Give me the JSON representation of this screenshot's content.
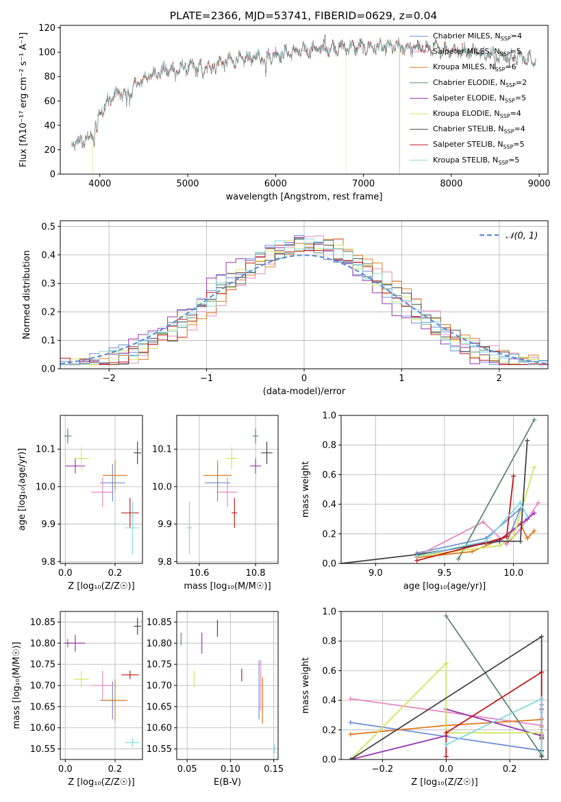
{
  "figure_title": "PLATE=2366, MJD=53741, FIBERID=0629, z=0.04",
  "series_styles": [
    {
      "name": "Chabrier MILES",
      "color": "#6a8fd6"
    },
    {
      "name": "Salpeter MILES",
      "color": "#e589c4"
    },
    {
      "name": "Kroupa MILES",
      "color": "#e07a20"
    },
    {
      "name": "Chabrier ELODIE",
      "color": "#5a8a6a"
    },
    {
      "name": "Salpeter ELODIE",
      "color": "#9933b3"
    },
    {
      "name": "Kroupa ELODIE",
      "color": "#cfe55a"
    },
    {
      "name": "Chabrier STELIB",
      "color": "#444444"
    },
    {
      "name": "Salpeter STELIB",
      "color": "#c41818"
    },
    {
      "name": "Kroupa STELIB",
      "color": "#80d8e0"
    }
  ],
  "chart_data": [
    {
      "id": "spectrum",
      "type": "line",
      "xlabel": "wavelength [Angstrom, rest frame]",
      "ylabel": "Flux [fλ10⁻¹⁷ erg cm⁻² s⁻¹ A⁻¹]",
      "xlim": [
        3550,
        9100
      ],
      "ylim": [
        0,
        122
      ],
      "xticks": [
        4000,
        5000,
        6000,
        7000,
        8000,
        9000
      ],
      "yticks": [
        0,
        20,
        40,
        60,
        80,
        100,
        120
      ],
      "legend_location": "right",
      "legend": [
        {
          "label": "Chabrier MILES, N",
          "sub": "SSP",
          "tail": "=4"
        },
        {
          "label": "Salpeter MILES, N",
          "sub": "SSP",
          "tail": "=5"
        },
        {
          "label": "Kroupa MILES, N",
          "sub": "SSP",
          "tail": "=6"
        },
        {
          "label": "Chabrier ELODIE, N",
          "sub": "SSP",
          "tail": "=2"
        },
        {
          "label": "Salpeter ELODIE, N",
          "sub": "SSP",
          "tail": "=5"
        },
        {
          "label": "Kroupa ELODIE, N",
          "sub": "SSP",
          "tail": "=4"
        },
        {
          "label": "Chabrier STELIB, N",
          "sub": "SSP",
          "tail": "=4"
        },
        {
          "label": "Salpeter STELIB, N",
          "sub": "SSP",
          "tail": "=5"
        },
        {
          "label": "Kroupa STELIB, N",
          "sub": "SSP",
          "tail": "=5"
        }
      ],
      "continuum": [
        [
          3680,
          24
        ],
        [
          3800,
          27
        ],
        [
          3900,
          30
        ],
        [
          3950,
          40
        ],
        [
          4000,
          50
        ],
        [
          4100,
          62
        ],
        [
          4200,
          66
        ],
        [
          4300,
          66
        ],
        [
          4400,
          72
        ],
        [
          4500,
          78
        ],
        [
          4600,
          82
        ],
        [
          4700,
          84
        ],
        [
          4800,
          86
        ],
        [
          4900,
          86
        ],
        [
          5000,
          88
        ],
        [
          5100,
          87
        ],
        [
          5200,
          88
        ],
        [
          5300,
          90
        ],
        [
          5500,
          93
        ],
        [
          5700,
          95
        ],
        [
          5900,
          97
        ],
        [
          6100,
          99
        ],
        [
          6300,
          101
        ],
        [
          6500,
          103
        ],
        [
          6700,
          104
        ],
        [
          7000,
          104
        ],
        [
          7400,
          104
        ],
        [
          7800,
          103
        ],
        [
          8200,
          101
        ],
        [
          8600,
          97
        ],
        [
          8950,
          94
        ]
      ],
      "truncations": [
        {
          "series": "Kroupa ELODIE",
          "at": 3920
        },
        {
          "series": "Kroupa ELODIE",
          "at": 6800
        },
        {
          "series": "Kroupa MILES",
          "at": 7410
        }
      ]
    },
    {
      "id": "residual-histogram",
      "type": "histogram",
      "xlabel": "(data-model)/error",
      "ylabel": "Normed distribution",
      "xlim": [
        -2.5,
        2.5
      ],
      "ylim": [
        0,
        0.52
      ],
      "xticks": [
        -2,
        -1,
        0,
        1,
        2
      ],
      "yticks": [
        0.0,
        0.1,
        0.2,
        0.3,
        0.4,
        0.5
      ],
      "reference_curve": {
        "label": "𝒩(0, 1)",
        "mean": 0,
        "sigma": 1,
        "color": "#5b8dd9",
        "style": "dashed"
      },
      "bin_width": 0.1,
      "legend_location": "top-right"
    },
    {
      "id": "age-vs-Z",
      "type": "errorbar",
      "xlabel": "Z [log₁₀(Z/Z☉)]",
      "ylabel": "age  [log₁₀(age/yr)]",
      "xlim": [
        -0.02,
        0.31
      ],
      "ylim": [
        9.795,
        10.19
      ],
      "xticks": [
        0.0,
        0.2
      ],
      "yticks": [
        9.8,
        9.9,
        10.0,
        10.1
      ],
      "points": [
        {
          "series": "Chabrier MILES",
          "x": 0.19,
          "y": 10.01,
          "xerr": 0.05,
          "yerr": 0.05
        },
        {
          "series": "Salpeter MILES",
          "x": 0.15,
          "y": 9.985,
          "xerr": 0.045,
          "yerr": 0.04
        },
        {
          "series": "Kroupa MILES",
          "x": 0.2,
          "y": 10.03,
          "xerr": 0.05,
          "yerr": 0.04
        },
        {
          "series": "Chabrier ELODIE",
          "x": 0.01,
          "y": 10.135,
          "xerr": 0.015,
          "yerr": 0.02
        },
        {
          "series": "Salpeter ELODIE",
          "x": 0.04,
          "y": 10.055,
          "xerr": 0.04,
          "yerr": 0.02
        },
        {
          "series": "Kroupa ELODIE",
          "x": 0.065,
          "y": 10.075,
          "xerr": 0.03,
          "yerr": 0.03
        },
        {
          "series": "Chabrier STELIB",
          "x": 0.29,
          "y": 10.09,
          "xerr": 0.015,
          "yerr": 0.03
        },
        {
          "series": "Salpeter STELIB",
          "x": 0.26,
          "y": 9.93,
          "xerr": 0.035,
          "yerr": 0.04
        },
        {
          "series": "Kroupa STELIB",
          "x": 0.27,
          "y": 9.89,
          "xerr": 0.03,
          "yerr": 0.07
        }
      ]
    },
    {
      "id": "age-vs-mass",
      "type": "errorbar",
      "xlabel": "mass [log₁₀(M/M☉)]",
      "ylabel": "",
      "xlim": [
        10.52,
        10.88
      ],
      "ylim": [
        9.795,
        10.19
      ],
      "xticks": [
        10.6,
        10.8
      ],
      "yticks": [
        9.8,
        9.9,
        10.0,
        10.1
      ],
      "points": [
        {
          "series": "Chabrier MILES",
          "x": 10.665,
          "y": 10.01,
          "xerr": 0.045,
          "yerr": 0.05
        },
        {
          "series": "Salpeter MILES",
          "x": 10.7,
          "y": 9.985,
          "xerr": 0.035,
          "yerr": 0.04
        },
        {
          "series": "Kroupa MILES",
          "x": 10.665,
          "y": 10.03,
          "xerr": 0.05,
          "yerr": 0.04
        },
        {
          "series": "Chabrier ELODIE",
          "x": 10.8,
          "y": 10.135,
          "xerr": 0.01,
          "yerr": 0.02
        },
        {
          "series": "Salpeter ELODIE",
          "x": 10.8,
          "y": 10.055,
          "xerr": 0.02,
          "yerr": 0.02
        },
        {
          "series": "Kroupa ELODIE",
          "x": 10.715,
          "y": 10.075,
          "xerr": 0.02,
          "yerr": 0.03
        },
        {
          "series": "Chabrier STELIB",
          "x": 10.84,
          "y": 10.09,
          "xerr": 0.02,
          "yerr": 0.03
        },
        {
          "series": "Salpeter STELIB",
          "x": 10.725,
          "y": 9.93,
          "xerr": 0.01,
          "yerr": 0.04
        },
        {
          "series": "Kroupa STELIB",
          "x": 10.565,
          "y": 9.89,
          "xerr": 0.01,
          "yerr": 0.07
        }
      ]
    },
    {
      "id": "mass-weight-vs-age",
      "type": "line",
      "xlabel": "age  [log₁₀(age/yr)]",
      "ylabel": "mass weight",
      "xlim": [
        8.75,
        10.25
      ],
      "ylim": [
        0,
        1.0
      ],
      "xticks": [
        9.0,
        9.5,
        10.0
      ],
      "yticks": [
        0.0,
        0.2,
        0.4,
        0.6,
        0.8,
        1.0
      ],
      "series": [
        {
          "name": "Chabrier MILES",
          "points": [
            [
              9.3,
              0.07
            ],
            [
              9.8,
              0.17
            ],
            [
              10.05,
              0.37
            ],
            [
              9.95,
              0.14
            ]
          ]
        },
        {
          "name": "Salpeter MILES",
          "points": [
            [
              9.3,
              0.05
            ],
            [
              9.78,
              0.28
            ],
            [
              9.95,
              0.13
            ],
            [
              10.05,
              0.23
            ],
            [
              10.18,
              0.41
            ]
          ]
        },
        {
          "name": "Kroupa MILES",
          "points": [
            [
              9.3,
              0.04
            ],
            [
              9.7,
              0.08
            ],
            [
              9.95,
              0.18
            ],
            [
              10.05,
              0.27
            ],
            [
              10.1,
              0.17
            ],
            [
              10.15,
              0.22
            ]
          ]
        },
        {
          "name": "Chabrier ELODIE",
          "points": [
            [
              9.6,
              0.03
            ],
            [
              10.15,
              0.97
            ]
          ]
        },
        {
          "name": "Salpeter ELODIE",
          "points": [
            [
              9.3,
              0.05
            ],
            [
              9.9,
              0.16
            ],
            [
              10.1,
              0.3
            ],
            [
              10.15,
              0.34
            ]
          ]
        },
        {
          "name": "Kroupa ELODIE",
          "points": [
            [
              9.3,
              0.05
            ],
            [
              9.9,
              0.12
            ],
            [
              10.0,
              0.18
            ],
            [
              10.15,
              0.65
            ]
          ]
        },
        {
          "name": "Chabrier STELIB",
          "points": [
            [
              8.75,
              0.0
            ],
            [
              9.3,
              0.06
            ],
            [
              9.9,
              0.15
            ],
            [
              10.05,
              0.15
            ],
            [
              10.1,
              0.83
            ]
          ]
        },
        {
          "name": "Salpeter STELIB",
          "points": [
            [
              9.3,
              0.02
            ],
            [
              9.8,
              0.14
            ],
            [
              9.95,
              0.18
            ],
            [
              10.0,
              0.59
            ]
          ]
        },
        {
          "name": "Kroupa STELIB",
          "points": [
            [
              9.3,
              0.05
            ],
            [
              9.8,
              0.15
            ],
            [
              10.05,
              0.41
            ],
            [
              10.1,
              0.32
            ]
          ]
        }
      ]
    },
    {
      "id": "mass-vs-Z",
      "type": "errorbar",
      "xlabel": "Z [log₁₀(Z/Z☉)]",
      "ylabel": "mass [log₁₀(M/M☉)]",
      "xlim": [
        -0.02,
        0.31
      ],
      "ylim": [
        10.525,
        10.875
      ],
      "xticks": [
        0.0,
        0.2
      ],
      "yticks": [
        10.55,
        10.6,
        10.65,
        10.7,
        10.75,
        10.8,
        10.85
      ],
      "points": [
        {
          "series": "Chabrier MILES",
          "x": 0.19,
          "y": 10.665,
          "xerr": 0.05,
          "yerr": 0.045
        },
        {
          "series": "Salpeter MILES",
          "x": 0.15,
          "y": 10.7,
          "xerr": 0.045,
          "yerr": 0.035
        },
        {
          "series": "Kroupa MILES",
          "x": 0.2,
          "y": 10.665,
          "xerr": 0.05,
          "yerr": 0.05
        },
        {
          "series": "Chabrier ELODIE",
          "x": 0.01,
          "y": 10.8,
          "xerr": 0.015,
          "yerr": 0.01
        },
        {
          "series": "Salpeter ELODIE",
          "x": 0.04,
          "y": 10.8,
          "xerr": 0.04,
          "yerr": 0.02
        },
        {
          "series": "Kroupa ELODIE",
          "x": 0.065,
          "y": 10.715,
          "xerr": 0.03,
          "yerr": 0.02
        },
        {
          "series": "Chabrier STELIB",
          "x": 0.29,
          "y": 10.84,
          "xerr": 0.015,
          "yerr": 0.02
        },
        {
          "series": "Salpeter STELIB",
          "x": 0.26,
          "y": 10.725,
          "xerr": 0.035,
          "yerr": 0.01
        },
        {
          "series": "Kroupa STELIB",
          "x": 0.27,
          "y": 10.565,
          "xerr": 0.03,
          "yerr": 0.01
        }
      ]
    },
    {
      "id": "mass-vs-EBV",
      "type": "errorbar",
      "xlabel": "E(B-V)",
      "ylabel": "",
      "xlim": [
        0.038,
        0.155
      ],
      "ylim": [
        10.525,
        10.875
      ],
      "xticks": [
        0.05,
        0.1,
        0.15
      ],
      "yticks": [
        10.55,
        10.6,
        10.65,
        10.7,
        10.75,
        10.8,
        10.85
      ],
      "points": [
        {
          "series": "Chabrier MILES",
          "x": 0.133,
          "y": 10.69,
          "xerr": 0.0,
          "yerr": 0.07
        },
        {
          "series": "Salpeter MILES",
          "x": 0.135,
          "y": 10.7,
          "xerr": 0.0,
          "yerr": 0.06
        },
        {
          "series": "Kroupa MILES",
          "x": 0.137,
          "y": 10.665,
          "xerr": 0.0,
          "yerr": 0.055
        },
        {
          "series": "Chabrier ELODIE",
          "x": 0.043,
          "y": 10.81,
          "xerr": 0.0,
          "yerr": 0.015
        },
        {
          "series": "Salpeter ELODIE",
          "x": 0.067,
          "y": 10.8,
          "xerr": 0.0,
          "yerr": 0.025
        },
        {
          "series": "Kroupa ELODIE",
          "x": 0.058,
          "y": 10.715,
          "xerr": 0.0,
          "yerr": 0.02
        },
        {
          "series": "Chabrier STELIB",
          "x": 0.085,
          "y": 10.835,
          "xerr": 0.0,
          "yerr": 0.02
        },
        {
          "series": "Salpeter STELIB",
          "x": 0.113,
          "y": 10.725,
          "xerr": 0.0,
          "yerr": 0.015
        },
        {
          "series": "Kroupa STELIB",
          "x": 0.151,
          "y": 10.55,
          "xerr": 0.0,
          "yerr": 0.01
        }
      ]
    },
    {
      "id": "mass-weight-vs-Z",
      "type": "line",
      "xlabel": "Z [log₁₀(Z/Z☉)]",
      "ylabel": "mass weight",
      "xlim": [
        -0.33,
        0.32
      ],
      "ylim": [
        0,
        1.0
      ],
      "xticks": [
        -0.2,
        0.0,
        0.2
      ],
      "yticks": [
        0.0,
        0.2,
        0.4,
        0.6,
        0.8,
        1.0
      ],
      "series": [
        {
          "name": "Chabrier MILES",
          "points": [
            [
              -0.3,
              0.25
            ],
            [
              0.3,
              0.06
            ],
            [
              0.3,
              0.37
            ],
            [
              0.3,
              0.14
            ]
          ]
        },
        {
          "name": "Salpeter MILES",
          "points": [
            [
              -0.3,
              0.41
            ],
            [
              0.3,
              0.23
            ],
            [
              0.3,
              0.28
            ]
          ]
        },
        {
          "name": "Kroupa MILES",
          "points": [
            [
              -0.3,
              0.17
            ],
            [
              0.0,
              0.23
            ],
            [
              0.3,
              0.27
            ],
            [
              0.3,
              0.17
            ],
            [
              0.3,
              0.22
            ]
          ]
        },
        {
          "name": "Chabrier ELODIE",
          "points": [
            [
              0.0,
              0.97
            ],
            [
              0.3,
              0.03
            ]
          ]
        },
        {
          "name": "Salpeter ELODIE",
          "points": [
            [
              -0.3,
              0.0
            ],
            [
              0.0,
              0.16
            ],
            [
              0.0,
              0.34
            ],
            [
              0.3,
              0.16
            ],
            [
              0.3,
              0.34
            ]
          ]
        },
        {
          "name": "Kroupa ELODIE",
          "points": [
            [
              -0.3,
              0.0
            ],
            [
              0.0,
              0.65
            ],
            [
              0.0,
              0.18
            ],
            [
              0.3,
              0.18
            ]
          ]
        },
        {
          "name": "Chabrier STELIB",
          "points": [
            [
              -0.3,
              0.0
            ],
            [
              0.3,
              0.83
            ],
            [
              0.3,
              0.15
            ],
            [
              0.3,
              0.06
            ],
            [
              0.3,
              0.02
            ]
          ]
        },
        {
          "name": "Salpeter STELIB",
          "points": [
            [
              0.0,
              0.02
            ],
            [
              0.0,
              0.18
            ],
            [
              0.3,
              0.59
            ],
            [
              0.3,
              0.14
            ]
          ]
        },
        {
          "name": "Kroupa STELIB",
          "points": [
            [
              0.0,
              0.1
            ],
            [
              0.3,
              0.41
            ],
            [
              0.3,
              0.05
            ],
            [
              0.3,
              0.32
            ]
          ]
        }
      ]
    }
  ]
}
